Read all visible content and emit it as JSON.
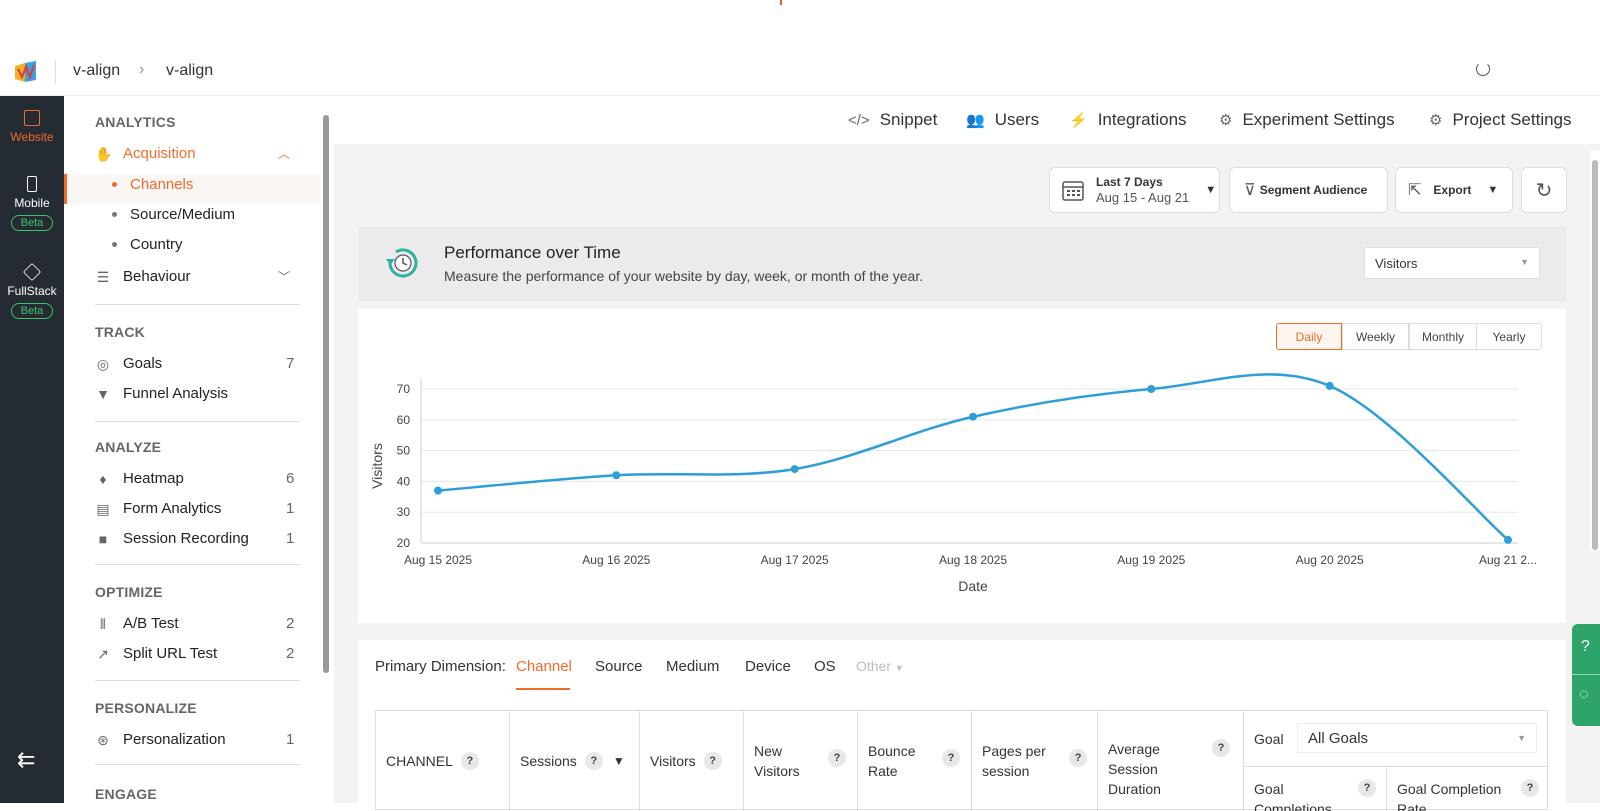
{
  "header": {
    "breadcrumb": [
      "v-align",
      "v-align"
    ]
  },
  "rail": {
    "items": [
      {
        "label": "Website",
        "icon": "window-icon",
        "active": true
      },
      {
        "label": "Mobile",
        "icon": "phone-icon",
        "badge": "Beta"
      },
      {
        "label": "FullStack",
        "icon": "layers-icon",
        "badge": "Beta"
      }
    ]
  },
  "sidebar": {
    "analytics_heading": "ANALYTICS",
    "acquisition": "Acquisition",
    "channels": "Channels",
    "source_medium": "Source/Medium",
    "country": "Country",
    "behaviour": "Behaviour",
    "track_heading": "TRACK",
    "goals": {
      "label": "Goals",
      "count": "7"
    },
    "funnel": {
      "label": "Funnel Analysis"
    },
    "analyze_heading": "ANALYZE",
    "heatmap": {
      "label": "Heatmap",
      "count": "6"
    },
    "form_analytics": {
      "label": "Form Analytics",
      "count": "1"
    },
    "session_recording": {
      "label": "Session Recording",
      "count": "1"
    },
    "optimize_heading": "OPTIMIZE",
    "ab_test": {
      "label": "A/B Test",
      "count": "2"
    },
    "split_url": {
      "label": "Split URL Test",
      "count": "2"
    },
    "personalize_heading": "PERSONALIZE",
    "personalization": {
      "label": "Personalization",
      "count": "1"
    },
    "engage_heading": "ENGAGE"
  },
  "toplinks": {
    "snippet": "Snippet",
    "users": "Users",
    "integrations": "Integrations",
    "experiment_settings": "Experiment Settings",
    "project_settings": "Project Settings"
  },
  "controls": {
    "date_title": "Last 7 Days",
    "date_range": "Aug 15 - Aug 21",
    "segment": "Segment Audience",
    "export": "Export"
  },
  "performance": {
    "title": "Performance over Time",
    "subtitle": "Measure the performance of your website by day, week, or month of the year.",
    "metric_select": "Visitors",
    "periods": [
      "Daily",
      "Weekly",
      "Monthly",
      "Yearly"
    ]
  },
  "chart_data": {
    "type": "line",
    "categories": [
      "Aug 15 2025",
      "Aug 16 2025",
      "Aug 17 2025",
      "Aug 18 2025",
      "Aug 19 2025",
      "Aug 20 2025",
      "Aug 21 2..."
    ],
    "series": [
      {
        "values": [
          37,
          42,
          44,
          61,
          70,
          71,
          21
        ]
      }
    ],
    "xlabel": "Date",
    "ylabel": "Visitors",
    "ylim": [
      20,
      70
    ],
    "yticks": [
      20,
      30,
      40,
      50,
      60,
      70
    ],
    "grid": true,
    "color": "#2e9fd6"
  },
  "dimensions": {
    "label": "Primary Dimension:",
    "tabs": [
      "Channel",
      "Source",
      "Medium",
      "Device",
      "OS"
    ],
    "other": "Other"
  },
  "table": {
    "headers": {
      "channel": "CHANNEL",
      "sessions": "Sessions",
      "visitors": "Visitors",
      "new_visitors": "New Visitors",
      "bounce_rate": "Bounce Rate",
      "pages_per_session": "Pages per session",
      "avg_session": "Average Session Duration",
      "goal": "Goal",
      "goal_select": "All Goals",
      "goal_completions": "Goal Completions",
      "goal_completion_rate": "Goal Completion Rate"
    },
    "help_mark": "?"
  },
  "colors": {
    "accent": "#f26b2b",
    "rail": "#252b33",
    "line": "#2e9fd6",
    "beta": "#3ec36b",
    "help": "#2fa46a"
  }
}
